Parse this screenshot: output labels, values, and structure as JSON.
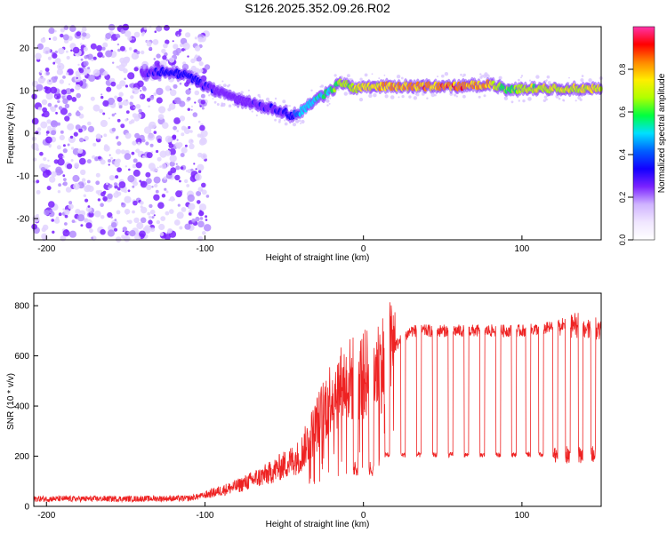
{
  "figure_title": "S126.2025.352.09.26.R02",
  "chart_data": [
    {
      "type": "heatmap",
      "xlabel": "Height of straight line (km)",
      "ylabel": "Frequency (Hz)",
      "xlim": [
        -208,
        150
      ],
      "ylim": [
        -25,
        25
      ],
      "xticks": [
        -200,
        -100,
        0,
        100
      ],
      "yticks": [
        -20,
        -10,
        0,
        10,
        20
      ],
      "colorbar": {
        "label": "Normalized spectral amplitude",
        "range": [
          0,
          1
        ],
        "ticks": [
          "0.0",
          "0.2",
          "0.4",
          "0.6",
          "0.8"
        ],
        "colors": [
          "#ffffff",
          "#f0e6ff",
          "#cfb3ff",
          "#7a22ff",
          "#1200ff",
          "#0060ff",
          "#00e0ff",
          "#00ff40",
          "#b0ff00",
          "#ffee00",
          "#ff8800",
          "#ff0000",
          "#ff33aa"
        ]
      },
      "ridge": {
        "x": [
          -140,
          -125,
          -110,
          -100,
          -90,
          -80,
          -70,
          -60,
          -50,
          -45,
          -40,
          -30,
          -20,
          -15,
          -5,
          0,
          20,
          40,
          60,
          80,
          85,
          90,
          100,
          120,
          140,
          150
        ],
        "freq": [
          14,
          14.5,
          13.5,
          11,
          9.5,
          8,
          7,
          6,
          5,
          4,
          5,
          8,
          10,
          12,
          10.5,
          11,
          11,
          11,
          11,
          11.5,
          11,
          10,
          10.5,
          10.5,
          10.5,
          10.3
        ],
        "amplitude": [
          0.3,
          0.35,
          0.35,
          0.3,
          0.3,
          0.28,
          0.3,
          0.3,
          0.32,
          0.38,
          0.5,
          0.55,
          0.6,
          0.7,
          0.72,
          0.78,
          0.85,
          0.88,
          0.9,
          0.85,
          0.7,
          0.65,
          0.72,
          0.75,
          0.78,
          0.78
        ]
      }
    },
    {
      "type": "line",
      "xlabel": "Height of straight line (km)",
      "ylabel": "SNR (10 * v/v)",
      "xlim": [
        -208,
        150
      ],
      "ylim": [
        0,
        850
      ],
      "xticks": [
        -200,
        -100,
        0,
        100
      ],
      "yticks": [
        0,
        200,
        400,
        600,
        800
      ],
      "color": "#ee2222",
      "envelope": {
        "x": [
          -208,
          -150,
          -110,
          -100,
          -80,
          -60,
          -40,
          -30,
          -20,
          -10,
          0,
          10,
          20,
          30,
          50,
          100,
          130,
          150
        ],
        "y": [
          30,
          30,
          32,
          45,
          80,
          130,
          200,
          320,
          450,
          500,
          520,
          560,
          640,
          700,
          700,
          700,
          720,
          710
        ]
      },
      "dip_positions": [
        -5,
        5,
        15,
        25,
        35,
        45,
        55,
        65,
        75,
        85,
        95,
        104,
        112,
        121,
        129,
        137,
        145
      ],
      "dip_level": 200
    }
  ]
}
